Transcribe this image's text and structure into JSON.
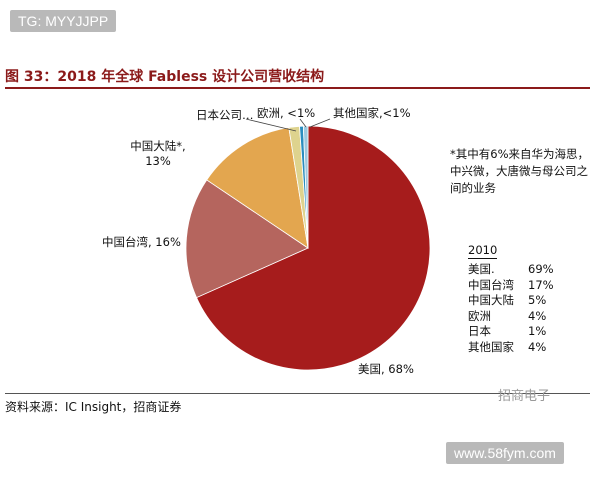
{
  "top_badge": "TG: MYYJJPP",
  "figure_title": "图 33：2018 年全球 Fabless 设计公司营收结构",
  "source": "资料来源：IC Insight，招商证券",
  "watermark_cn": "招商电子",
  "watermark_url": "www.58fym.com",
  "note": "*其中有6%来自华为海思，中兴微，大唐微与母公司之间的业务",
  "colors": {
    "title": "#8b1a1a",
    "usa": "#a61c1c",
    "taiwan": "#b5655e",
    "mainland": "#e3a64f",
    "japan": "#ded38e",
    "europe": "#2b8dbf",
    "other": "#9cc9df"
  },
  "chart_data": {
    "type": "pie",
    "title": "2018 年全球 Fabless 设计公司营收结构",
    "slices": [
      {
        "key": "usa",
        "label_lines": [
          "美国, 68%"
        ],
        "value": 68
      },
      {
        "key": "taiwan",
        "label_lines": [
          "中国台湾, 16%"
        ],
        "value": 16
      },
      {
        "key": "mainland",
        "label_lines": [
          "中国大陆*,",
          "13%"
        ],
        "value": 13
      },
      {
        "key": "japan",
        "label_lines": [
          "日本公司…"
        ],
        "value": 1.4
      },
      {
        "key": "europe",
        "label_lines": [
          "欧洲, <1%"
        ],
        "value": 0.5
      },
      {
        "key": "other",
        "label_lines": [
          "其他国家,<1%"
        ],
        "value": 0.6
      }
    ],
    "table_2010": {
      "title": "2010",
      "rows": [
        {
          "region": "美国.",
          "value": "69%"
        },
        {
          "region": "中国台湾",
          "value": "17%"
        },
        {
          "region": "中国大陆",
          "value": "5%"
        },
        {
          "region": "欧洲",
          "value": "4%"
        },
        {
          "region": "日本",
          "value": "1%"
        },
        {
          "region": "其他国家",
          "value": "4%"
        }
      ]
    }
  }
}
